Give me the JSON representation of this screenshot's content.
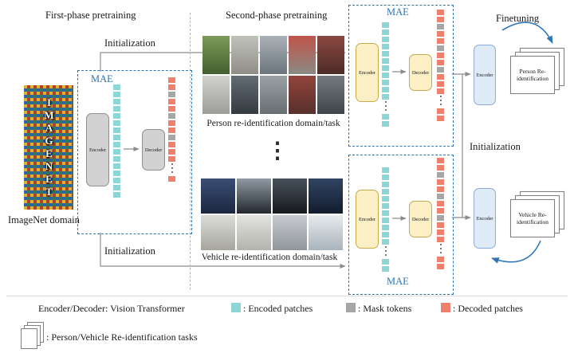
{
  "header": {
    "first_phase": "First-phase pretraining",
    "second_phase": "Second-phase pretraining",
    "finetuning": "Finetuning"
  },
  "labels": {
    "initialization_top": "Initialization",
    "initialization_bottom": "Initialization",
    "initialization_right": "Initialization",
    "imagenet_domain": "ImageNet domain",
    "imagenet_logo": "IMAGENET",
    "person_caption": "Person re-identification domain/task",
    "vehicle_caption": "Vehicle re-identification domain/task",
    "mae_first": "MAE",
    "mae_top": "MAE",
    "mae_bottom": "MAE",
    "encoder": "Encoder",
    "decoder": "Decoder",
    "ellipsis": "⋮",
    "person_doc": "Person Re-identification",
    "vehicle_doc": "Vehicle Re-identification"
  },
  "legend": {
    "vit": "Encoder/Decoder: Vision Transformer",
    "encoded": ": Encoded patches",
    "mask": ": Mask tokens",
    "decoded": ": Decoded patches",
    "tasks": ": Person/Vehicle Re-identification tasks"
  },
  "colors": {
    "encoded": "#8ED6D6",
    "mask": "#A6A6A6",
    "decoded": "#F0806E",
    "mae_border": "#2E75B6",
    "arrow_gray": "#8c8c8c",
    "arrow_blue": "#2E75B6"
  },
  "patch_columns": {
    "mae1_enc": "cccccccccccccccc",
    "mae1_dec": "rrgrrgrrgrrr.r",
    "mae2_enc": "ccccccccccc.cc",
    "mae2_dec": "rrgrrgrrgrrr.rr",
    "mae3_enc": "ccccccccccc.cc",
    "mae3_dec": "rrgrrgrrgrrr.rr"
  },
  "person_photos": [
    [
      "#7c9a58",
      "#44602f"
    ],
    [
      "#c2c2bd",
      "#8e8e86"
    ],
    [
      "#aab2b8",
      "#6d757c"
    ],
    [
      "#c0544a",
      "#8a8a84"
    ],
    [
      "#8a4a42",
      "#4e2b27"
    ],
    [
      "#d2d2cf",
      "#9c9c98"
    ],
    [
      "#646c74",
      "#343a40"
    ],
    [
      "#9aa0a4",
      "#686e72"
    ],
    [
      "#92443c",
      "#57302c"
    ],
    [
      "#757a7e",
      "#3f4448"
    ]
  ],
  "vehicle_photos": [
    [
      "#3a4e74",
      "#1c2740"
    ],
    [
      "#8f9aa4",
      "#23282e"
    ],
    [
      "#49525c",
      "#16191d"
    ],
    [
      "#314463",
      "#121c2e"
    ],
    [
      "#ddddd8",
      "#a5a59e"
    ],
    [
      "#e3e3df",
      "#b3b3ad"
    ],
    [
      "#c7cbcf",
      "#90959a"
    ],
    [
      "#e6eaed",
      "#a9b4bc"
    ]
  ]
}
